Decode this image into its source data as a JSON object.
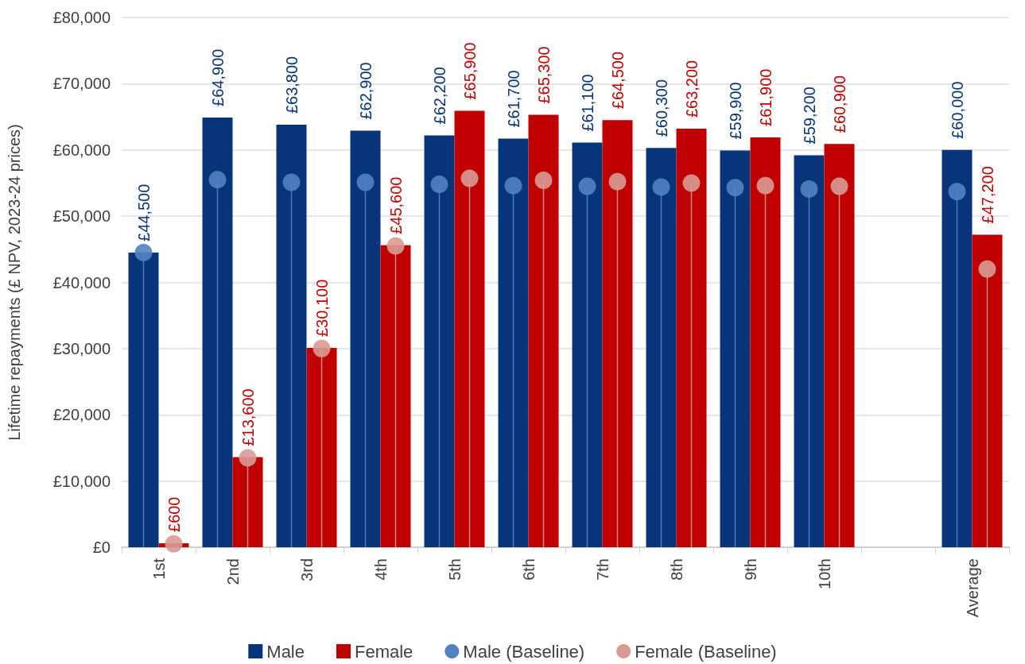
{
  "chart_data": {
    "type": "bar",
    "ylabel": "Lifetime repayments (£ NPV, 2023-24 prices)",
    "categories": [
      "1st",
      "2nd",
      "3rd",
      "4th",
      "5th",
      "6th",
      "7th",
      "8th",
      "9th",
      "10th",
      null,
      "Average"
    ],
    "series": [
      {
        "name": "Male",
        "color": "#08357a",
        "values": [
          44500,
          64900,
          63800,
          62900,
          62200,
          61700,
          61100,
          60300,
          59900,
          59200,
          null,
          60000
        ],
        "value_labels": [
          "£44,500",
          "£64,900",
          "£63,800",
          "£62,900",
          "£62,200",
          "£61,700",
          "£61,100",
          "£60,300",
          "£59,900",
          "£59,200",
          null,
          "£60,000"
        ]
      },
      {
        "name": "Female",
        "color": "#c00000",
        "values": [
          600,
          13600,
          30100,
          45600,
          65900,
          65300,
          64500,
          63200,
          61900,
          60900,
          null,
          47200
        ],
        "value_labels": [
          "£600",
          "£13,600",
          "£30,100",
          "£45,600",
          "£65,900",
          "£65,300",
          "£64,500",
          "£63,200",
          "£61,900",
          "£60,900",
          null,
          "£47,200"
        ]
      },
      {
        "name": "Male (Baseline)",
        "type": "lollipop",
        "color": "#5382c2",
        "values": [
          44500,
          55500,
          55100,
          55100,
          54800,
          54600,
          54500,
          54400,
          54300,
          54100,
          null,
          53700
        ]
      },
      {
        "name": "Female (Baseline)",
        "type": "lollipop",
        "color": "#d99a94",
        "values": [
          500,
          13500,
          30000,
          45500,
          55700,
          55400,
          55200,
          55000,
          54600,
          54500,
          null,
          42000
        ]
      }
    ],
    "ylim": [
      0,
      80000
    ],
    "yticks": [
      {
        "value": 0,
        "label": "£0"
      },
      {
        "value": 10000,
        "label": "£10,000"
      },
      {
        "value": 20000,
        "label": "£20,000"
      },
      {
        "value": 30000,
        "label": "£30,000"
      },
      {
        "value": 40000,
        "label": "£40,000"
      },
      {
        "value": 50000,
        "label": "£50,000"
      },
      {
        "value": 60000,
        "label": "£60,000"
      },
      {
        "value": 70000,
        "label": "£70,000"
      },
      {
        "value": 80000,
        "label": "£80,000"
      }
    ],
    "grid": "y",
    "legend": "bottom",
    "marker": "circle"
  }
}
